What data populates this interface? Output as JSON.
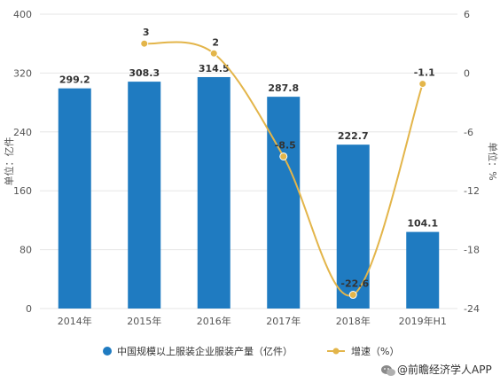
{
  "chart_data": {
    "type": "bar+line",
    "categories": [
      "2014年",
      "2015年",
      "2016年",
      "2017年",
      "2018年",
      "2019年H1"
    ],
    "series": [
      {
        "name": "中国规模以上服装企业服装产量（亿件）",
        "type": "bar",
        "axis": "left",
        "values": [
          299.2,
          308.3,
          314.5,
          287.8,
          222.7,
          104.1
        ],
        "labels": [
          "299.2",
          "308.3",
          "314.5",
          "287.8",
          "222.7",
          "104.1"
        ],
        "color": "#1f7bc1"
      },
      {
        "name": "增速（%）",
        "type": "line",
        "axis": "right",
        "values": [
          null,
          3,
          2,
          -8.5,
          -22.6,
          -1.1
        ],
        "labels": [
          "",
          "3",
          "2",
          "-8.5",
          "-22.6",
          "-1.1"
        ],
        "color": "#e3b54a"
      }
    ],
    "y_left": {
      "label": "单位：亿件",
      "min": 0,
      "max": 400,
      "ticks": [
        "0",
        "80",
        "160",
        "240",
        "320",
        "400"
      ]
    },
    "y_right": {
      "label": "单位：%",
      "min": -24,
      "max": 6,
      "ticks": [
        "6",
        "0",
        "-6",
        "-12",
        "-18",
        "-24"
      ]
    },
    "grid": true,
    "legend_position": "bottom"
  },
  "source_text": "@前瞻经济学人APP",
  "brand_icon": "wechat-icon"
}
